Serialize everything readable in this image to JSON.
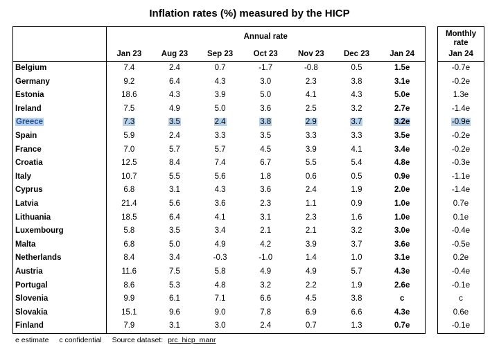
{
  "title": "Inflation rates (%) measured by the HICP",
  "annual_header": "Annual rate",
  "monthly_header_line1": "Monthly",
  "monthly_header_line2": "rate",
  "monthly_column": "Jan 24",
  "columns": [
    "Jan 23",
    "Aug 23",
    "Sep 23",
    "Oct 23",
    "Nov 23",
    "Dec 23",
    "Jan 24"
  ],
  "rows": [
    {
      "country": "Belgium",
      "values": [
        "7.4",
        "2.4",
        "0.7",
        "-1.7",
        "-0.8",
        "0.5",
        "1.5e"
      ],
      "monthly": "-0.7e"
    },
    {
      "country": "Germany",
      "values": [
        "9.2",
        "6.4",
        "4.3",
        "3.0",
        "2.3",
        "3.8",
        "3.1e"
      ],
      "monthly": "-0.2e"
    },
    {
      "country": "Estonia",
      "values": [
        "18.6",
        "4.3",
        "3.9",
        "5.0",
        "4.1",
        "4.3",
        "5.0e"
      ],
      "monthly": "1.3e"
    },
    {
      "country": "Ireland",
      "values": [
        "7.5",
        "4.9",
        "5.0",
        "3.6",
        "2.5",
        "3.2",
        "2.7e"
      ],
      "monthly": "-1.4e"
    },
    {
      "country": "Greece",
      "values": [
        "7.3",
        "3.5",
        "2.4",
        "3.8",
        "2.9",
        "3.7",
        "3.2e"
      ],
      "monthly": "-0.9e",
      "highlight": true
    },
    {
      "country": "Spain",
      "values": [
        "5.9",
        "2.4",
        "3.3",
        "3.5",
        "3.3",
        "3.3",
        "3.5e"
      ],
      "monthly": "-0.2e"
    },
    {
      "country": "France",
      "values": [
        "7.0",
        "5.7",
        "5.7",
        "4.5",
        "3.9",
        "4.1",
        "3.4e"
      ],
      "monthly": "-0.2e"
    },
    {
      "country": "Croatia",
      "values": [
        "12.5",
        "8.4",
        "7.4",
        "6.7",
        "5.5",
        "5.4",
        "4.8e"
      ],
      "monthly": "-0.3e"
    },
    {
      "country": "Italy",
      "values": [
        "10.7",
        "5.5",
        "5.6",
        "1.8",
        "0.6",
        "0.5",
        "0.9e"
      ],
      "monthly": "-1.1e"
    },
    {
      "country": "Cyprus",
      "values": [
        "6.8",
        "3.1",
        "4.3",
        "3.6",
        "2.4",
        "1.9",
        "2.0e"
      ],
      "monthly": "-1.4e"
    },
    {
      "country": "Latvia",
      "values": [
        "21.4",
        "5.6",
        "3.6",
        "2.3",
        "1.1",
        "0.9",
        "1.0e"
      ],
      "monthly": "0.7e"
    },
    {
      "country": "Lithuania",
      "values": [
        "18.5",
        "6.4",
        "4.1",
        "3.1",
        "2.3",
        "1.6",
        "1.0e"
      ],
      "monthly": "0.1e"
    },
    {
      "country": "Luxembourg",
      "values": [
        "5.8",
        "3.5",
        "3.4",
        "2.1",
        "2.1",
        "3.2",
        "3.0e"
      ],
      "monthly": "-0.4e"
    },
    {
      "country": "Malta",
      "values": [
        "6.8",
        "5.0",
        "4.9",
        "4.2",
        "3.9",
        "3.7",
        "3.6e"
      ],
      "monthly": "-0.5e"
    },
    {
      "country": "Netherlands",
      "values": [
        "8.4",
        "3.4",
        "-0.3",
        "-1.0",
        "1.4",
        "1.0",
        "3.1e"
      ],
      "monthly": "0.2e"
    },
    {
      "country": "Austria",
      "values": [
        "11.6",
        "7.5",
        "5.8",
        "4.9",
        "4.9",
        "5.7",
        "4.3e"
      ],
      "monthly": "-0.4e"
    },
    {
      "country": "Portugal",
      "values": [
        "8.6",
        "5.3",
        "4.8",
        "3.2",
        "2.2",
        "1.9",
        "2.6e"
      ],
      "monthly": "-0.1e"
    },
    {
      "country": "Slovenia",
      "values": [
        "9.9",
        "6.1",
        "7.1",
        "6.6",
        "4.5",
        "3.8",
        "c"
      ],
      "monthly": "c"
    },
    {
      "country": "Slovakia",
      "values": [
        "15.1",
        "9.6",
        "9.0",
        "7.8",
        "6.9",
        "6.6",
        "4.3e"
      ],
      "monthly": "0.6e"
    },
    {
      "country": "Finland",
      "values": [
        "7.9",
        "3.1",
        "3.0",
        "2.4",
        "0.7",
        "1.3",
        "0.7e"
      ],
      "monthly": "-0.1e"
    }
  ],
  "footer": {
    "estimate": "e estimate",
    "confidential": "c confidential",
    "source_label": "Source dataset:",
    "source_link": "prc_hicp_manr"
  },
  "colors": {
    "highlight": "#b7d1ea",
    "highlight_text": "#1f4e9c"
  }
}
